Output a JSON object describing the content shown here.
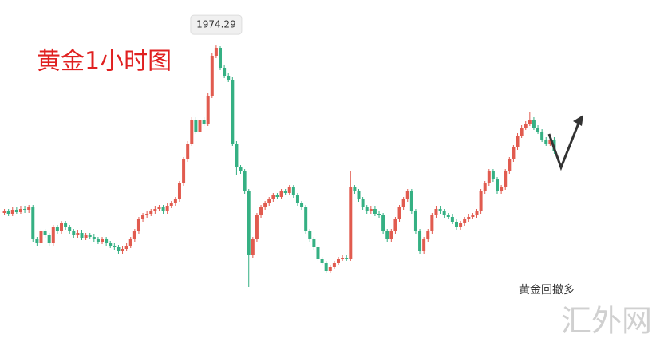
{
  "chart_data": {
    "type": "candlestick",
    "title": "黄金1小时图",
    "annotation": "黄金回撤多",
    "watermark": "汇外网",
    "up_color": "#e15b4f",
    "down_color": "#35b083",
    "ylim": [
      1936.6,
      1980
    ],
    "candles": [
      [
        1953.3,
        1953.8,
        1953.0,
        1953.5
      ],
      [
        1953.5,
        1953.8,
        1952.9,
        1953.2
      ],
      [
        1953.2,
        1954.0,
        1952.9,
        1953.7
      ],
      [
        1953.7,
        1954.0,
        1953.1,
        1953.4
      ],
      [
        1953.4,
        1954.1,
        1953.1,
        1953.8
      ],
      [
        1953.8,
        1954.1,
        1953.3,
        1953.6
      ],
      [
        1953.6,
        1954.3,
        1953.3,
        1954.0
      ],
      [
        1954.0,
        1954.3,
        1949.7,
        1950.0
      ],
      [
        1950.0,
        1950.3,
        1949.2,
        1949.5
      ],
      [
        1949.5,
        1951.3,
        1949.2,
        1951.0
      ],
      [
        1951.0,
        1951.3,
        1950.2,
        1950.5
      ],
      [
        1950.5,
        1950.8,
        1949.2,
        1949.5
      ],
      [
        1949.5,
        1951.8,
        1949.2,
        1951.5
      ],
      [
        1951.5,
        1951.8,
        1950.7,
        1951.0
      ],
      [
        1951.0,
        1952.3,
        1950.7,
        1952.0
      ],
      [
        1952.0,
        1952.3,
        1951.2,
        1951.5
      ],
      [
        1951.5,
        1951.8,
        1950.7,
        1951.0
      ],
      [
        1951.0,
        1951.3,
        1950.2,
        1950.5
      ],
      [
        1950.5,
        1951.1,
        1950.2,
        1950.8
      ],
      [
        1950.8,
        1951.1,
        1949.9,
        1950.2
      ],
      [
        1950.2,
        1950.8,
        1949.9,
        1950.5
      ],
      [
        1950.5,
        1950.8,
        1950.0,
        1950.3
      ],
      [
        1950.3,
        1950.6,
        1949.7,
        1950.0
      ],
      [
        1950.0,
        1950.3,
        1949.4,
        1949.7
      ],
      [
        1949.7,
        1950.3,
        1949.4,
        1950.0
      ],
      [
        1950.0,
        1950.3,
        1949.2,
        1949.5
      ],
      [
        1949.5,
        1949.8,
        1948.9,
        1949.2
      ],
      [
        1949.2,
        1949.5,
        1948.7,
        1949.0
      ],
      [
        1949.0,
        1949.3,
        1948.2,
        1948.5
      ],
      [
        1948.5,
        1949.1,
        1948.2,
        1948.8
      ],
      [
        1948.8,
        1949.5,
        1948.5,
        1949.2
      ],
      [
        1949.2,
        1950.3,
        1948.9,
        1950.0
      ],
      [
        1950.0,
        1951.3,
        1949.7,
        1951.0
      ],
      [
        1951.0,
        1952.8,
        1950.7,
        1952.5
      ],
      [
        1952.5,
        1953.3,
        1952.2,
        1953.0
      ],
      [
        1953.0,
        1953.5,
        1952.7,
        1953.2
      ],
      [
        1953.2,
        1953.8,
        1952.9,
        1953.5
      ],
      [
        1953.5,
        1954.1,
        1953.2,
        1953.8
      ],
      [
        1953.8,
        1954.3,
        1953.5,
        1954.0
      ],
      [
        1954.0,
        1954.3,
        1953.2,
        1953.5
      ],
      [
        1953.5,
        1954.5,
        1953.2,
        1954.2
      ],
      [
        1954.2,
        1954.8,
        1953.9,
        1954.5
      ],
      [
        1954.5,
        1955.3,
        1954.2,
        1955.0
      ],
      [
        1955.0,
        1957.3,
        1954.7,
        1957.0
      ],
      [
        1957.0,
        1960.3,
        1956.7,
        1960.0
      ],
      [
        1960.0,
        1962.3,
        1959.7,
        1962.0
      ],
      [
        1962.0,
        1965.3,
        1961.7,
        1965.0
      ],
      [
        1965.0,
        1965.3,
        1963.2,
        1963.5
      ],
      [
        1963.5,
        1965.3,
        1963.2,
        1965.0
      ],
      [
        1965.0,
        1965.3,
        1964.2,
        1964.5
      ],
      [
        1964.5,
        1968.3,
        1964.2,
        1968.0
      ],
      [
        1968.0,
        1973.3,
        1967.7,
        1973.0
      ],
      [
        1973.0,
        1974.29,
        1972.7,
        1974.0
      ],
      [
        1974.0,
        1974.2,
        1971.2,
        1971.5
      ],
      [
        1971.5,
        1971.8,
        1970.2,
        1970.5
      ],
      [
        1970.5,
        1970.8,
        1969.7,
        1970.0
      ],
      [
        1970.0,
        1970.3,
        1961.7,
        1962.0
      ],
      [
        1962.0,
        1962.3,
        1958.0,
        1959.0
      ],
      [
        1959.0,
        1959.3,
        1958.2,
        1958.5
      ],
      [
        1958.5,
        1958.8,
        1955.7,
        1956.0
      ],
      [
        1956.0,
        1956.3,
        1944.0,
        1948.0
      ],
      [
        1948.0,
        1950.3,
        1947.7,
        1950.0
      ],
      [
        1950.0,
        1953.3,
        1949.7,
        1953.0
      ],
      [
        1953.0,
        1954.3,
        1952.7,
        1954.0
      ],
      [
        1954.0,
        1954.8,
        1953.7,
        1954.5
      ],
      [
        1954.5,
        1955.3,
        1954.2,
        1955.0
      ],
      [
        1955.0,
        1955.8,
        1954.7,
        1955.5
      ],
      [
        1955.5,
        1955.8,
        1955.0,
        1955.3
      ],
      [
        1955.3,
        1956.3,
        1955.0,
        1956.0
      ],
      [
        1956.0,
        1956.3,
        1955.5,
        1955.8
      ],
      [
        1955.8,
        1956.8,
        1955.5,
        1956.5
      ],
      [
        1956.5,
        1956.8,
        1955.2,
        1955.5
      ],
      [
        1955.5,
        1955.8,
        1954.2,
        1954.5
      ],
      [
        1954.5,
        1954.8,
        1953.7,
        1954.0
      ],
      [
        1954.0,
        1954.3,
        1950.7,
        1951.0
      ],
      [
        1951.0,
        1951.3,
        1949.7,
        1950.0
      ],
      [
        1950.0,
        1950.3,
        1948.7,
        1949.0
      ],
      [
        1949.0,
        1949.3,
        1947.2,
        1947.5
      ],
      [
        1947.5,
        1947.8,
        1946.7,
        1947.0
      ],
      [
        1947.0,
        1947.3,
        1945.7,
        1946.0
      ],
      [
        1946.0,
        1946.8,
        1945.7,
        1946.5
      ],
      [
        1946.5,
        1947.3,
        1946.2,
        1947.0
      ],
      [
        1947.0,
        1947.8,
        1946.7,
        1947.5
      ],
      [
        1947.5,
        1948.0,
        1947.2,
        1947.7
      ],
      [
        1947.7,
        1948.0,
        1947.2,
        1947.5
      ],
      [
        1947.5,
        1958.5,
        1947.2,
        1956.5
      ],
      [
        1956.5,
        1956.8,
        1955.7,
        1956.0
      ],
      [
        1956.0,
        1956.3,
        1954.7,
        1955.0
      ],
      [
        1955.0,
        1955.3,
        1953.7,
        1954.0
      ],
      [
        1954.0,
        1954.3,
        1953.2,
        1953.5
      ],
      [
        1953.5,
        1954.1,
        1953.2,
        1953.8
      ],
      [
        1953.8,
        1954.1,
        1952.9,
        1953.2
      ],
      [
        1953.2,
        1953.5,
        1952.7,
        1953.0
      ],
      [
        1953.0,
        1953.3,
        1950.7,
        1951.0
      ],
      [
        1951.0,
        1951.3,
        1949.7,
        1950.0
      ],
      [
        1950.0,
        1951.3,
        1949.7,
        1951.0
      ],
      [
        1951.0,
        1952.8,
        1950.7,
        1952.5
      ],
      [
        1952.5,
        1954.3,
        1952.2,
        1954.0
      ],
      [
        1954.0,
        1955.3,
        1953.7,
        1955.0
      ],
      [
        1955.0,
        1956.3,
        1954.7,
        1956.0
      ],
      [
        1956.0,
        1956.3,
        1953.2,
        1953.5
      ],
      [
        1953.5,
        1953.8,
        1950.7,
        1951.0
      ],
      [
        1951.0,
        1951.3,
        1948.2,
        1948.5
      ],
      [
        1948.5,
        1950.3,
        1948.2,
        1950.0
      ],
      [
        1950.0,
        1951.3,
        1949.7,
        1951.0
      ],
      [
        1951.0,
        1953.3,
        1950.7,
        1953.0
      ],
      [
        1953.0,
        1954.1,
        1952.7,
        1953.8
      ],
      [
        1953.8,
        1954.1,
        1953.2,
        1953.5
      ],
      [
        1953.5,
        1953.8,
        1952.7,
        1953.0
      ],
      [
        1953.0,
        1953.3,
        1952.5,
        1952.8
      ],
      [
        1952.8,
        1953.1,
        1951.9,
        1952.2
      ],
      [
        1952.2,
        1952.5,
        1951.2,
        1951.5
      ],
      [
        1951.5,
        1952.3,
        1951.2,
        1952.0
      ],
      [
        1952.0,
        1952.8,
        1951.7,
        1952.5
      ],
      [
        1952.5,
        1953.1,
        1952.2,
        1952.8
      ],
      [
        1952.8,
        1953.3,
        1952.5,
        1953.0
      ],
      [
        1953.0,
        1953.8,
        1952.7,
        1953.5
      ],
      [
        1953.5,
        1956.3,
        1953.2,
        1956.0
      ],
      [
        1956.0,
        1957.3,
        1955.7,
        1957.0
      ],
      [
        1957.0,
        1958.8,
        1956.7,
        1958.5
      ],
      [
        1958.5,
        1958.8,
        1957.2,
        1957.5
      ],
      [
        1957.5,
        1957.8,
        1955.7,
        1956.0
      ],
      [
        1956.0,
        1956.8,
        1955.7,
        1956.5
      ],
      [
        1956.5,
        1958.8,
        1956.2,
        1958.5
      ],
      [
        1958.5,
        1960.3,
        1958.2,
        1960.0
      ],
      [
        1960.0,
        1961.8,
        1959.7,
        1961.5
      ],
      [
        1961.5,
        1963.3,
        1961.2,
        1963.0
      ],
      [
        1963.0,
        1964.3,
        1962.7,
        1964.0
      ],
      [
        1964.0,
        1964.8,
        1963.7,
        1964.5
      ],
      [
        1964.5,
        1966.0,
        1964.2,
        1965.0
      ],
      [
        1965.0,
        1965.3,
        1963.7,
        1964.0
      ],
      [
        1964.0,
        1964.3,
        1963.2,
        1963.5
      ],
      [
        1963.5,
        1963.8,
        1962.2,
        1962.5
      ],
      [
        1962.5,
        1962.8,
        1961.7,
        1962.0
      ],
      [
        1962.0,
        1962.8,
        1961.7,
        1962.5
      ],
      [
        1962.5,
        1962.8,
        1960.7,
        1961.0
      ]
    ]
  }
}
